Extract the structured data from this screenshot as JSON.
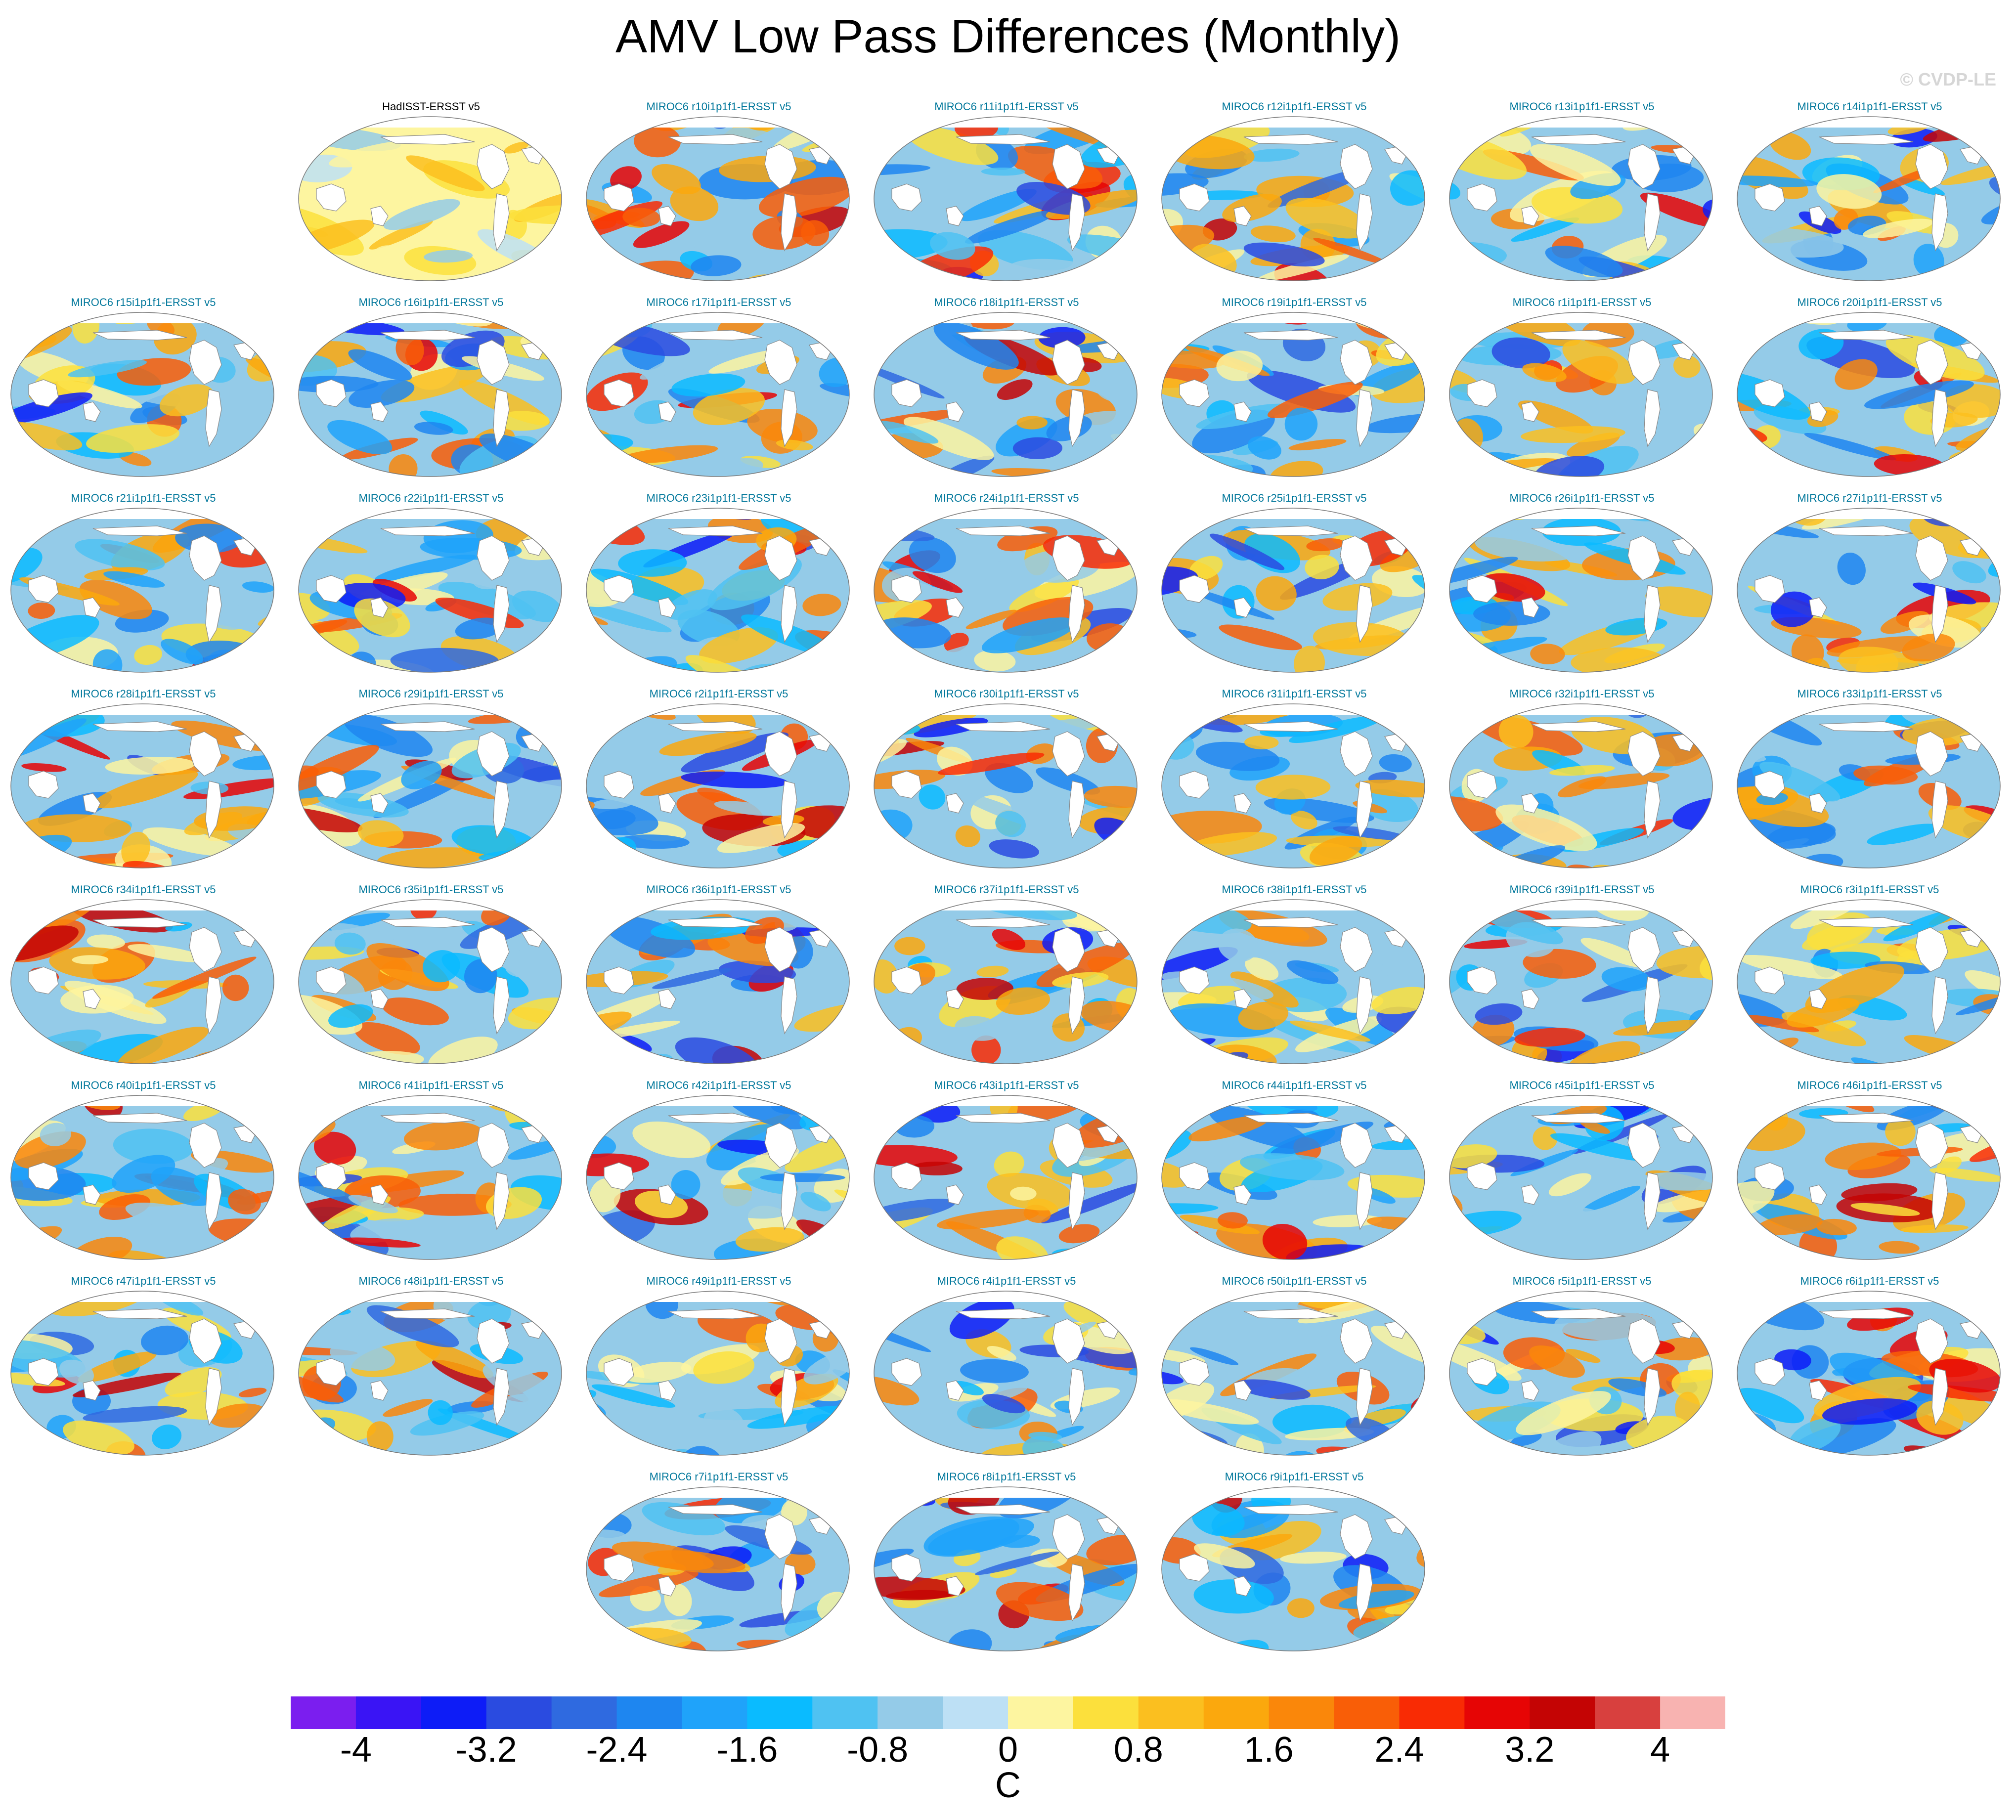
{
  "title": "AMV Low Pass Differences (Monthly)",
  "copyright": "© CVDP-LE",
  "panels": [
    {
      "title": "HadISST-ERSST v5",
      "obs": true
    },
    {
      "title": "MIROC6 r10i1p1f1-ERSST v5"
    },
    {
      "title": "MIROC6 r11i1p1f1-ERSST v5"
    },
    {
      "title": "MIROC6 r12i1p1f1-ERSST v5"
    },
    {
      "title": "MIROC6 r13i1p1f1-ERSST v5"
    },
    {
      "title": "MIROC6 r14i1p1f1-ERSST v5"
    },
    {
      "title": "MIROC6 r15i1p1f1-ERSST v5"
    },
    {
      "title": "MIROC6 r16i1p1f1-ERSST v5"
    },
    {
      "title": "MIROC6 r17i1p1f1-ERSST v5"
    },
    {
      "title": "MIROC6 r18i1p1f1-ERSST v5"
    },
    {
      "title": "MIROC6 r19i1p1f1-ERSST v5"
    },
    {
      "title": "MIROC6 r1i1p1f1-ERSST v5"
    },
    {
      "title": "MIROC6 r20i1p1f1-ERSST v5"
    },
    {
      "title": "MIROC6 r21i1p1f1-ERSST v5"
    },
    {
      "title": "MIROC6 r22i1p1f1-ERSST v5"
    },
    {
      "title": "MIROC6 r23i1p1f1-ERSST v5"
    },
    {
      "title": "MIROC6 r24i1p1f1-ERSST v5"
    },
    {
      "title": "MIROC6 r25i1p1f1-ERSST v5"
    },
    {
      "title": "MIROC6 r26i1p1f1-ERSST v5"
    },
    {
      "title": "MIROC6 r27i1p1f1-ERSST v5"
    },
    {
      "title": "MIROC6 r28i1p1f1-ERSST v5"
    },
    {
      "title": "MIROC6 r29i1p1f1-ERSST v5"
    },
    {
      "title": "MIROC6 r2i1p1f1-ERSST v5"
    },
    {
      "title": "MIROC6 r30i1p1f1-ERSST v5"
    },
    {
      "title": "MIROC6 r31i1p1f1-ERSST v5"
    },
    {
      "title": "MIROC6 r32i1p1f1-ERSST v5"
    },
    {
      "title": "MIROC6 r33i1p1f1-ERSST v5"
    },
    {
      "title": "MIROC6 r34i1p1f1-ERSST v5"
    },
    {
      "title": "MIROC6 r35i1p1f1-ERSST v5"
    },
    {
      "title": "MIROC6 r36i1p1f1-ERSST v5"
    },
    {
      "title": "MIROC6 r37i1p1f1-ERSST v5"
    },
    {
      "title": "MIROC6 r38i1p1f1-ERSST v5"
    },
    {
      "title": "MIROC6 r39i1p1f1-ERSST v5"
    },
    {
      "title": "MIROC6 r3i1p1f1-ERSST v5"
    },
    {
      "title": "MIROC6 r40i1p1f1-ERSST v5"
    },
    {
      "title": "MIROC6 r41i1p1f1-ERSST v5"
    },
    {
      "title": "MIROC6 r42i1p1f1-ERSST v5"
    },
    {
      "title": "MIROC6 r43i1p1f1-ERSST v5"
    },
    {
      "title": "MIROC6 r44i1p1f1-ERSST v5"
    },
    {
      "title": "MIROC6 r45i1p1f1-ERSST v5"
    },
    {
      "title": "MIROC6 r46i1p1f1-ERSST v5"
    },
    {
      "title": "MIROC6 r47i1p1f1-ERSST v5"
    },
    {
      "title": "MIROC6 r48i1p1f1-ERSST v5"
    },
    {
      "title": "MIROC6 r49i1p1f1-ERSST v5"
    },
    {
      "title": "MIROC6 r4i1p1f1-ERSST v5"
    },
    {
      "title": "MIROC6 r50i1p1f1-ERSST v5"
    },
    {
      "title": "MIROC6 r5i1p1f1-ERSST v5"
    },
    {
      "title": "MIROC6 r6i1p1f1-ERSST v5"
    },
    {
      "title": "MIROC6 r7i1p1f1-ERSST v5"
    },
    {
      "title": "MIROC6 r8i1p1f1-ERSST v5"
    },
    {
      "title": "MIROC6 r9i1p1f1-ERSST v5"
    }
  ],
  "colorbar": {
    "units": "C",
    "min": -4.4,
    "max": 4.4,
    "tick_labels": [
      "-4",
      "-3.2",
      "-2.4",
      "-1.6",
      "-0.8",
      "0",
      "0.8",
      "1.6",
      "2.4",
      "3.2",
      "4"
    ],
    "tick_values": [
      -4,
      -3.2,
      -2.4,
      -1.6,
      -0.8,
      0,
      0.8,
      1.6,
      2.4,
      3.2,
      4
    ],
    "colors": [
      "#7b1eef",
      "#3a14f5",
      "#0d1cf7",
      "#2a4be0",
      "#2f6ae0",
      "#1e86f0",
      "#1fa3fa",
      "#0abbff",
      "#4fc2f2",
      "#94cbe8",
      "#bde0f5",
      "#fdf5a0",
      "#fce03c",
      "#fbbf1f",
      "#fba80d",
      "#fa870a",
      "#f95e07",
      "#f92b04",
      "#e60505",
      "#c40404",
      "#d8403e",
      "#f8b3b1"
    ]
  }
}
